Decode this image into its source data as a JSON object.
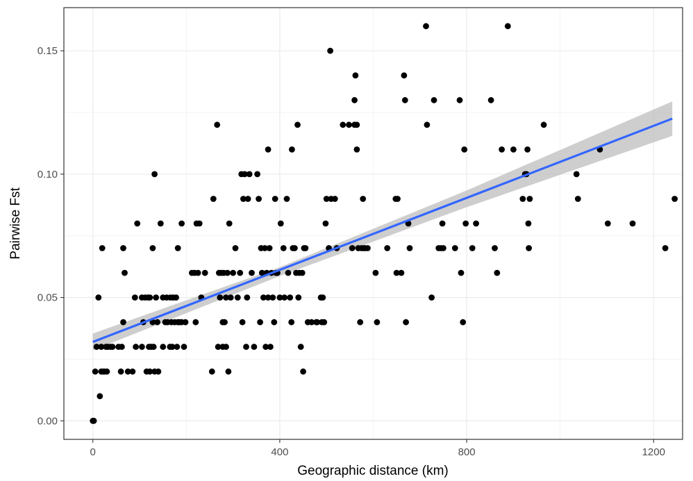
{
  "chart_data": {
    "type": "scatter",
    "title": "",
    "xlabel": "Geographic distance (km)",
    "ylabel": "Pairwise Fst",
    "xlim": [
      -62,
      1262
    ],
    "ylim": [
      -0.0075,
      0.1675
    ],
    "x_ticks": [
      0,
      400,
      800,
      1200
    ],
    "x_tick_labels": [
      "0",
      "400",
      "800",
      "1200"
    ],
    "y_ticks": [
      0.0,
      0.05,
      0.1,
      0.15
    ],
    "y_tick_labels": [
      "0.00",
      "0.05",
      "0.10",
      "0.15"
    ],
    "grid": true,
    "legend": "none",
    "colors": {
      "points": "#000000",
      "trend_line": "#3366ff",
      "confidence_band": "#bdbdbd",
      "grid": "#ebebeb"
    },
    "trend_line": {
      "method": "linear",
      "from": {
        "x": 0,
        "y": 0.032
      },
      "to": {
        "x": 1240,
        "y": 0.1225
      }
    },
    "confidence_band": [
      {
        "x": 0,
        "lower": 0.0286,
        "upper": 0.0354
      },
      {
        "x": 400,
        "lower": 0.0587,
        "upper": 0.0623
      },
      {
        "x": 800,
        "lower": 0.0866,
        "upper": 0.0934
      },
      {
        "x": 1240,
        "lower": 0.1155,
        "upper": 0.1295
      }
    ],
    "series": [
      {
        "points": [
          [
            0,
            0.0
          ],
          [
            1,
            0.0
          ],
          [
            2,
            0.0
          ],
          [
            5,
            0.02
          ],
          [
            8,
            0.03
          ],
          [
            12,
            0.05
          ],
          [
            15,
            0.01
          ],
          [
            18,
            0.02
          ],
          [
            18,
            0.03
          ],
          [
            20,
            0.07
          ],
          [
            22,
            0.02
          ],
          [
            25,
            0.02
          ],
          [
            28,
            0.03
          ],
          [
            30,
            0.02
          ],
          [
            32,
            0.03
          ],
          [
            38,
            0.03
          ],
          [
            42,
            0.03
          ],
          [
            55,
            0.03
          ],
          [
            60,
            0.02
          ],
          [
            62,
            0.03
          ],
          [
            65,
            0.07
          ],
          [
            65,
            0.04
          ],
          [
            68,
            0.06
          ],
          [
            75,
            0.02
          ],
          [
            85,
            0.02
          ],
          [
            90,
            0.05
          ],
          [
            92,
            0.03
          ],
          [
            95,
            0.08
          ],
          [
            105,
            0.03
          ],
          [
            105,
            0.05
          ],
          [
            108,
            0.04
          ],
          [
            112,
            0.05
          ],
          [
            115,
            0.02
          ],
          [
            118,
            0.05
          ],
          [
            120,
            0.03
          ],
          [
            122,
            0.05
          ],
          [
            122,
            0.02
          ],
          [
            125,
            0.03
          ],
          [
            128,
            0.07
          ],
          [
            128,
            0.04
          ],
          [
            130,
            0.03
          ],
          [
            132,
            0.1
          ],
          [
            132,
            0.02
          ],
          [
            135,
            0.05
          ],
          [
            138,
            0.04
          ],
          [
            140,
            0.02
          ],
          [
            145,
            0.08
          ],
          [
            150,
            0.05
          ],
          [
            150,
            0.03
          ],
          [
            155,
            0.04
          ],
          [
            158,
            0.05
          ],
          [
            160,
            0.04
          ],
          [
            165,
            0.03
          ],
          [
            166,
            0.05
          ],
          [
            168,
            0.04
          ],
          [
            170,
            0.03
          ],
          [
            172,
            0.05
          ],
          [
            175,
            0.04
          ],
          [
            178,
            0.05
          ],
          [
            180,
            0.03
          ],
          [
            182,
            0.04
          ],
          [
            182,
            0.07
          ],
          [
            185,
            0.04
          ],
          [
            190,
            0.08
          ],
          [
            190,
            0.04
          ],
          [
            195,
            0.03
          ],
          [
            198,
            0.04
          ],
          [
            212,
            0.06
          ],
          [
            218,
            0.06
          ],
          [
            220,
            0.04
          ],
          [
            222,
            0.08
          ],
          [
            225,
            0.06
          ],
          [
            228,
            0.08
          ],
          [
            232,
            0.05
          ],
          [
            240,
            0.06
          ],
          [
            255,
            0.02
          ],
          [
            258,
            0.09
          ],
          [
            266,
            0.12
          ],
          [
            268,
            0.03
          ],
          [
            270,
            0.06
          ],
          [
            272,
            0.05
          ],
          [
            275,
            0.06
          ],
          [
            278,
            0.04
          ],
          [
            278,
            0.03
          ],
          [
            280,
            0.06
          ],
          [
            282,
            0.04
          ],
          [
            285,
            0.05
          ],
          [
            285,
            0.03
          ],
          [
            288,
            0.06
          ],
          [
            290,
            0.02
          ],
          [
            292,
            0.08
          ],
          [
            295,
            0.05
          ],
          [
            300,
            0.06
          ],
          [
            305,
            0.07
          ],
          [
            310,
            0.05
          ],
          [
            315,
            0.06
          ],
          [
            318,
            0.1
          ],
          [
            320,
            0.04
          ],
          [
            322,
            0.09
          ],
          [
            325,
            0.1
          ],
          [
            328,
            0.03
          ],
          [
            330,
            0.05
          ],
          [
            332,
            0.09
          ],
          [
            335,
            0.1
          ],
          [
            340,
            0.06
          ],
          [
            345,
            0.03
          ],
          [
            352,
            0.1
          ],
          [
            355,
            0.09
          ],
          [
            358,
            0.04
          ],
          [
            360,
            0.07
          ],
          [
            362,
            0.06
          ],
          [
            365,
            0.05
          ],
          [
            368,
            0.07
          ],
          [
            370,
            0.03
          ],
          [
            372,
            0.06
          ],
          [
            375,
            0.05
          ],
          [
            375,
            0.11
          ],
          [
            378,
            0.07
          ],
          [
            380,
            0.03
          ],
          [
            382,
            0.06
          ],
          [
            385,
            0.05
          ],
          [
            388,
            0.04
          ],
          [
            390,
            0.09
          ],
          [
            392,
            0.06
          ],
          [
            395,
            0.06
          ],
          [
            400,
            0.05
          ],
          [
            402,
            0.08
          ],
          [
            408,
            0.07
          ],
          [
            410,
            0.05
          ],
          [
            415,
            0.09
          ],
          [
            418,
            0.06
          ],
          [
            422,
            0.05
          ],
          [
            425,
            0.04
          ],
          [
            426,
            0.11
          ],
          [
            428,
            0.07
          ],
          [
            432,
            0.07
          ],
          [
            435,
            0.06
          ],
          [
            438,
            0.12
          ],
          [
            440,
            0.05
          ],
          [
            442,
            0.06
          ],
          [
            445,
            0.03
          ],
          [
            448,
            0.06
          ],
          [
            450,
            0.02
          ],
          [
            452,
            0.07
          ],
          [
            455,
            0.07
          ],
          [
            460,
            0.04
          ],
          [
            468,
            0.04
          ],
          [
            478,
            0.04
          ],
          [
            480,
            0.04
          ],
          [
            488,
            0.05
          ],
          [
            490,
            0.04
          ],
          [
            492,
            0.05
          ],
          [
            495,
            0.04
          ],
          [
            498,
            0.08
          ],
          [
            500,
            0.09
          ],
          [
            505,
            0.07
          ],
          [
            508,
            0.15
          ],
          [
            510,
            0.09
          ],
          [
            518,
            0.09
          ],
          [
            522,
            0.07
          ],
          [
            535,
            0.12
          ],
          [
            548,
            0.12
          ],
          [
            555,
            0.07
          ],
          [
            560,
            0.13
          ],
          [
            560,
            0.12
          ],
          [
            562,
            0.14
          ],
          [
            565,
            0.11
          ],
          [
            565,
            0.12
          ],
          [
            568,
            0.07
          ],
          [
            572,
            0.04
          ],
          [
            575,
            0.07
          ],
          [
            578,
            0.09
          ],
          [
            580,
            0.07
          ],
          [
            582,
            0.07
          ],
          [
            588,
            0.07
          ],
          [
            605,
            0.06
          ],
          [
            608,
            0.04
          ],
          [
            630,
            0.07
          ],
          [
            648,
            0.09
          ],
          [
            650,
            0.06
          ],
          [
            652,
            0.09
          ],
          [
            660,
            0.06
          ],
          [
            666,
            0.14
          ],
          [
            668,
            0.13
          ],
          [
            670,
            0.04
          ],
          [
            675,
            0.08
          ],
          [
            678,
            0.07
          ],
          [
            713,
            0.16
          ],
          [
            715,
            0.12
          ],
          [
            725,
            0.05
          ],
          [
            730,
            0.13
          ],
          [
            740,
            0.07
          ],
          [
            745,
            0.07
          ],
          [
            748,
            0.08
          ],
          [
            750,
            0.07
          ],
          [
            775,
            0.07
          ],
          [
            785,
            0.13
          ],
          [
            788,
            0.06
          ],
          [
            792,
            0.04
          ],
          [
            795,
            0.11
          ],
          [
            798,
            0.08
          ],
          [
            812,
            0.07
          ],
          [
            820,
            0.08
          ],
          [
            852,
            0.13
          ],
          [
            860,
            0.07
          ],
          [
            865,
            0.06
          ],
          [
            875,
            0.11
          ],
          [
            888,
            0.16
          ],
          [
            900,
            0.11
          ],
          [
            920,
            0.09
          ],
          [
            925,
            0.1
          ],
          [
            928,
            0.1
          ],
          [
            930,
            0.11
          ],
          [
            932,
            0.08
          ],
          [
            933,
            0.07
          ],
          [
            935,
            0.09
          ],
          [
            965,
            0.12
          ],
          [
            1035,
            0.1
          ],
          [
            1038,
            0.09
          ],
          [
            1085,
            0.11
          ],
          [
            1102,
            0.08
          ],
          [
            1155,
            0.08
          ],
          [
            1225,
            0.07
          ],
          [
            1245,
            0.09
          ]
        ]
      }
    ]
  }
}
